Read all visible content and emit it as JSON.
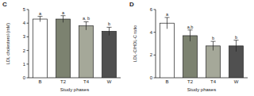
{
  "chart_data": [
    {
      "type": "bar",
      "title": "C",
      "y_label": "LDL cholesterol (mM)",
      "x_label": "Study phases",
      "categories": [
        "B",
        "T2",
        "T4",
        "W"
      ],
      "values": [
        4.3,
        4.3,
        3.8,
        3.4
      ],
      "errors": [
        0.2,
        0.25,
        0.3,
        0.3
      ],
      "annotations": [
        "a",
        "a",
        "a, b",
        "b"
      ],
      "colors": [
        "#ffffff",
        "#7c8270",
        "#a5a899",
        "#505050"
      ],
      "ylim": [
        0,
        5
      ],
      "yticks": [
        0,
        1,
        2,
        3,
        4,
        5
      ]
    },
    {
      "type": "bar",
      "title": "D",
      "y_label": "LDL-C/HDL-C ratio",
      "x_label": "Study phases",
      "categories": [
        "B",
        "T2",
        "T4",
        "W"
      ],
      "values": [
        4.8,
        3.7,
        2.8,
        2.8
      ],
      "errors": [
        0.5,
        0.5,
        0.4,
        0.5
      ],
      "annotations": [
        "a",
        "a,b",
        "b",
        "b"
      ],
      "colors": [
        "#ffffff",
        "#7c8270",
        "#a5a899",
        "#505050"
      ],
      "ylim": [
        0,
        6
      ],
      "yticks": [
        0,
        2,
        4,
        6
      ]
    }
  ]
}
